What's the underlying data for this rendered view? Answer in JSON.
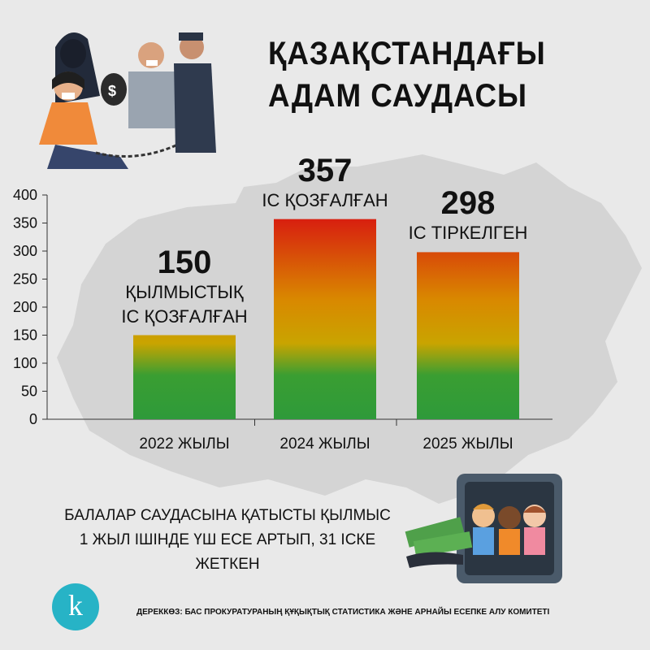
{
  "header": {
    "title_line1": "ҚАЗАҚСТАНДАҒЫ",
    "title_line2": "АДАМ САУДАСЫ"
  },
  "chart_data": {
    "type": "bar",
    "categories": [
      "2022 ЖЫЛЫ",
      "2024 ЖЫЛЫ",
      "2025 ЖЫЛЫ"
    ],
    "values": [
      150,
      357,
      298
    ],
    "value_labels": [
      "150",
      "357",
      "298"
    ],
    "captions": [
      [
        "ҚЫЛМЫСТЫҚ",
        "ІС ҚОЗҒАЛҒАН"
      ],
      [
        "ІС ҚОЗҒАЛҒАН"
      ],
      [
        "ІС ТІРКЕЛГЕН"
      ]
    ],
    "title": "",
    "xlabel": "",
    "ylabel": "",
    "ylim": [
      0,
      400
    ],
    "yticks": [
      0,
      50,
      100,
      150,
      200,
      250,
      300,
      350,
      400
    ],
    "grid": false,
    "colors": {
      "bottom": "#2e9a3a",
      "middle": "#c9a400",
      "top": "#d81f0f"
    }
  },
  "note": {
    "line1": "БАЛАЛАР САУДАСЫНА ҚАТЫСТЫ ҚЫЛМЫС",
    "line2": "1 ЖЫЛ ІШІНДЕ ҮШ ЕСЕ АРТЫП, 31 ІСКЕ ЖЕТКЕН"
  },
  "source": {
    "text": "ДЕРЕККӨЗ: БАС ПРОКУРАТУРАНЫҢ ҚҰҚЫҚТЫҚ СТАТИСТИКА ЖӘНЕ АРНАЙЫ ЕСЕПКЕ АЛУ КОМИТЕТІ"
  },
  "logo": {
    "letter": "k",
    "color": "#27b3c6"
  },
  "illustrations": {
    "top": "trafficking-scene-icon",
    "bottom": "children-in-safe-icon"
  }
}
